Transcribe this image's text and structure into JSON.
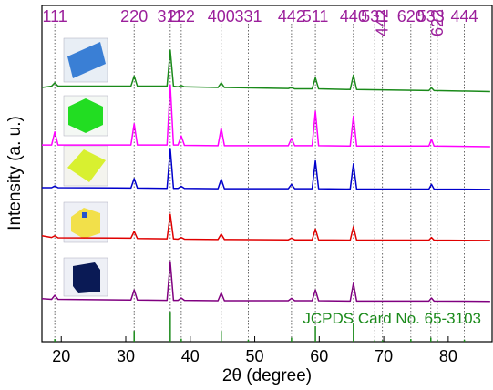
{
  "chart_data": {
    "type": "line",
    "xlabel": "2θ (degree)",
    "ylabel": "Intensity (a. u.)",
    "xlim": [
      17,
      86.8
    ],
    "ylim": [
      0,
      100
    ],
    "xticks": [
      20,
      30,
      40,
      50,
      60,
      70,
      80
    ],
    "x": [
      17,
      18.5,
      19.0,
      19.5,
      30.8,
      31.3,
      31.8,
      36.4,
      36.9,
      37.4,
      38.1,
      38.6,
      39.1,
      44.3,
      44.8,
      45.3,
      55.2,
      55.7,
      56.2,
      58.9,
      59.4,
      59.9,
      64.8,
      65.3,
      65.8,
      77.0,
      77.4,
      77.8,
      86.5
    ],
    "series": [
      {
        "color": "#1a8a1a",
        "values": [
          75.6,
          76,
          77,
          76,
          76,
          79,
          76,
          76,
          86.7,
          76,
          75.8,
          76.2,
          75.8,
          75.6,
          77,
          75.6,
          75.3,
          75.6,
          75.2,
          75.2,
          78.5,
          75.2,
          75,
          79.3,
          75,
          74.7,
          75.5,
          74.7,
          74.4
        ]
      },
      {
        "color": "#ff00ff",
        "values": [
          58.5,
          58.5,
          62.4,
          58.5,
          58.5,
          64.8,
          58.5,
          58.5,
          76.4,
          58.5,
          58.5,
          61.2,
          58.4,
          58.3,
          63.5,
          58.3,
          58.3,
          60.5,
          58.3,
          58.3,
          68.5,
          58.3,
          58.2,
          67.1,
          58.2,
          58.2,
          60.2,
          58.2,
          58
        ]
      },
      {
        "color": "#0000cc",
        "values": [
          45.8,
          45.8,
          46.3,
          45.8,
          45.7,
          48.5,
          45.7,
          45.6,
          57.5,
          45.6,
          45.6,
          46.2,
          45.6,
          45.5,
          48.3,
          45.5,
          45.5,
          46.8,
          45.5,
          45.5,
          53.8,
          45.5,
          45.4,
          52.9,
          45.4,
          45.4,
          46.8,
          45.4,
          45.3
        ]
      },
      {
        "color": "#e00000",
        "values": [
          31.5,
          31,
          31.5,
          30.9,
          30.8,
          32.8,
          30.7,
          30.6,
          37.9,
          30.6,
          30.5,
          31,
          30.5,
          30.4,
          32,
          30.4,
          30.3,
          30.8,
          30.3,
          30.3,
          33.5,
          30.3,
          30.2,
          34.2,
          30.2,
          30.2,
          31,
          30.2,
          30.1
        ]
      },
      {
        "color": "#800080",
        "values": [
          12.8,
          12.6,
          13.8,
          12.6,
          12.4,
          15.4,
          12.4,
          12.3,
          23.8,
          12.3,
          12.3,
          13,
          12.3,
          12.2,
          14.5,
          12.2,
          12.2,
          12.9,
          12.2,
          12.2,
          15.4,
          12.2,
          12.1,
          17.4,
          12.1,
          12.1,
          13,
          12.1,
          12
        ]
      }
    ],
    "reflections": {
      "color": "#9b1f9b",
      "x": [
        19.0,
        31.3,
        36.9,
        38.6,
        44.8,
        49.0,
        55.7,
        59.4,
        65.3,
        68.6,
        69.8,
        74.2,
        77.3,
        78.3,
        82.5
      ],
      "labels": [
        "111",
        "220",
        "311",
        "222",
        "400",
        "331",
        "442",
        "511",
        "440",
        "531",
        "442",
        "620",
        "533",
        "622",
        "444"
      ]
    },
    "reference": {
      "name": "JCPDS Card No. 65-3103",
      "color": "#1a8a1a",
      "x": [
        19.0,
        31.3,
        36.9,
        38.6,
        44.8,
        49.0,
        55.7,
        59.4,
        65.3,
        68.6,
        69.8,
        74.2,
        77.3,
        78.3,
        82.5
      ],
      "values": [
        0.8,
        3.2,
        8.9,
        0.9,
        3.2,
        0.6,
        1.2,
        4.6,
        5.4,
        0.4,
        0.4,
        0.8,
        1.2,
        0.6,
        0.6
      ]
    }
  }
}
